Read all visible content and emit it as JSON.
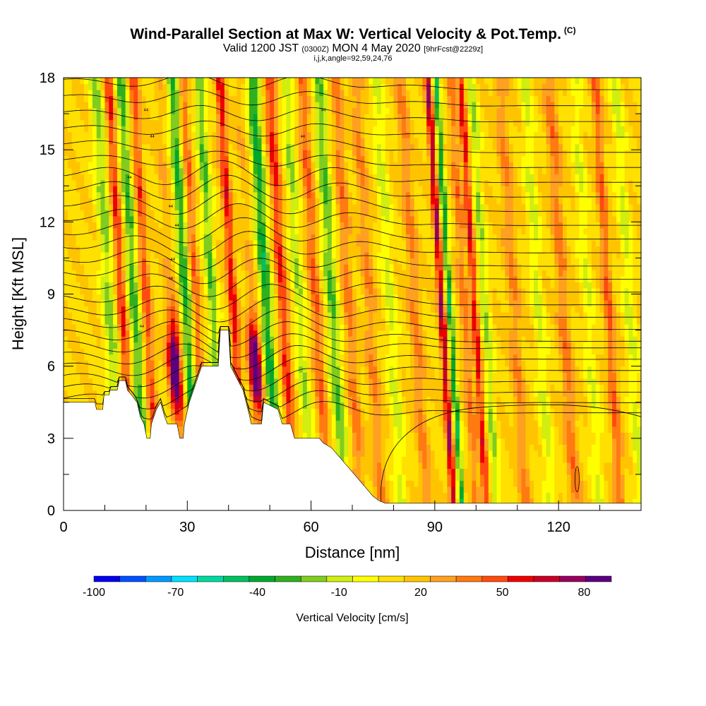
{
  "chart_data": {
    "type": "heatmap",
    "title": "Wind-Parallel Section at Max W: Vertical Velocity & Pot.Temp.",
    "title_tag": "(C)",
    "subtitle_prefix": "Valid 1200 JST",
    "subtitle_utc": "(0300Z)",
    "subtitle_date": "MON 4 May 2020",
    "subtitle_fcst": "[9hrFcst@2229z]",
    "subtitle2": "i,j,k,angle=92,59,24,76",
    "xlabel": "Distance [nm]",
    "ylabel": "Height [Kft MSL]",
    "xlim": [
      0,
      140
    ],
    "ylim": [
      0,
      18
    ],
    "x_ticks": [
      "0",
      "30",
      "60",
      "90",
      "120"
    ],
    "x_tick_values": [
      0,
      30,
      60,
      90,
      120
    ],
    "y_ticks": [
      "0",
      "3",
      "6",
      "9",
      "12",
      "15",
      "18"
    ],
    "y_tick_values": [
      0,
      3,
      6,
      9,
      12,
      15,
      18
    ],
    "colorbar": {
      "title": "Vertical Velocity [cm/s]",
      "labels": [
        "-100",
        "-70",
        "-40",
        "-10",
        "20",
        "50",
        "80"
      ],
      "label_values": [
        -100,
        -70,
        -40,
        -10,
        20,
        50,
        80
      ],
      "range": [
        -100,
        90
      ],
      "colors": [
        "#0000ee",
        "#0050ff",
        "#0099ff",
        "#00e0ff",
        "#00d8a0",
        "#00c060",
        "#00a830",
        "#30b020",
        "#80cc20",
        "#d0ee10",
        "#ffff00",
        "#ffe000",
        "#ffc400",
        "#ffa020",
        "#ff7a10",
        "#ff4a10",
        "#ee0000",
        "#c80028",
        "#960060",
        "#5a0080"
      ]
    },
    "terrain_kft": [
      [
        0,
        4.5
      ],
      [
        7.6,
        4.5
      ],
      [
        8,
        4.2
      ],
      [
        9.5,
        4.2
      ],
      [
        9.8,
        4.8
      ],
      [
        11,
        4.8
      ],
      [
        11.3,
        5.0
      ],
      [
        13,
        5.0
      ],
      [
        13.5,
        5.4
      ],
      [
        15,
        5.4
      ],
      [
        15.5,
        5.0
      ],
      [
        16.5,
        4.8
      ],
      [
        17.8,
        4.5
      ],
      [
        18.6,
        3.9
      ],
      [
        19.5,
        3.6
      ],
      [
        20.2,
        3.0
      ],
      [
        21,
        3.0
      ],
      [
        21.3,
        3.6
      ],
      [
        22.5,
        4.2
      ],
      [
        23.5,
        4.5
      ],
      [
        24.5,
        3.9
      ],
      [
        25.2,
        3.6
      ],
      [
        26,
        3.6
      ],
      [
        27.5,
        3.6
      ],
      [
        28.2,
        3.0
      ],
      [
        29,
        3.0
      ],
      [
        29.3,
        3.6
      ],
      [
        30.5,
        4.5
      ],
      [
        31.5,
        5.0
      ],
      [
        33.5,
        6.0
      ],
      [
        37.5,
        6.0
      ],
      [
        38,
        7.5
      ],
      [
        40,
        7.5
      ],
      [
        40.5,
        6.0
      ],
      [
        42,
        5.5
      ],
      [
        43.5,
        5.0
      ],
      [
        45,
        4.0
      ],
      [
        45.5,
        3.6
      ],
      [
        48,
        3.6
      ],
      [
        48.5,
        4.5
      ],
      [
        52,
        4.2
      ],
      [
        53,
        3.6
      ],
      [
        55,
        3.6
      ],
      [
        56,
        3.0
      ],
      [
        58,
        3.0
      ],
      [
        61,
        3.0
      ],
      [
        62,
        3.0
      ],
      [
        63,
        2.8
      ],
      [
        65,
        2.6
      ],
      [
        67,
        2.2
      ],
      [
        69,
        1.8
      ],
      [
        71,
        1.4
      ],
      [
        73,
        1.0
      ],
      [
        75,
        0.6
      ],
      [
        76.5,
        0.4
      ],
      [
        78,
        0.3
      ],
      [
        140,
        0.3
      ]
    ],
    "contour_labels": [
      "44",
      "44",
      "44",
      "44",
      "44",
      "44",
      "44",
      "44",
      "44",
      "44"
    ]
  }
}
